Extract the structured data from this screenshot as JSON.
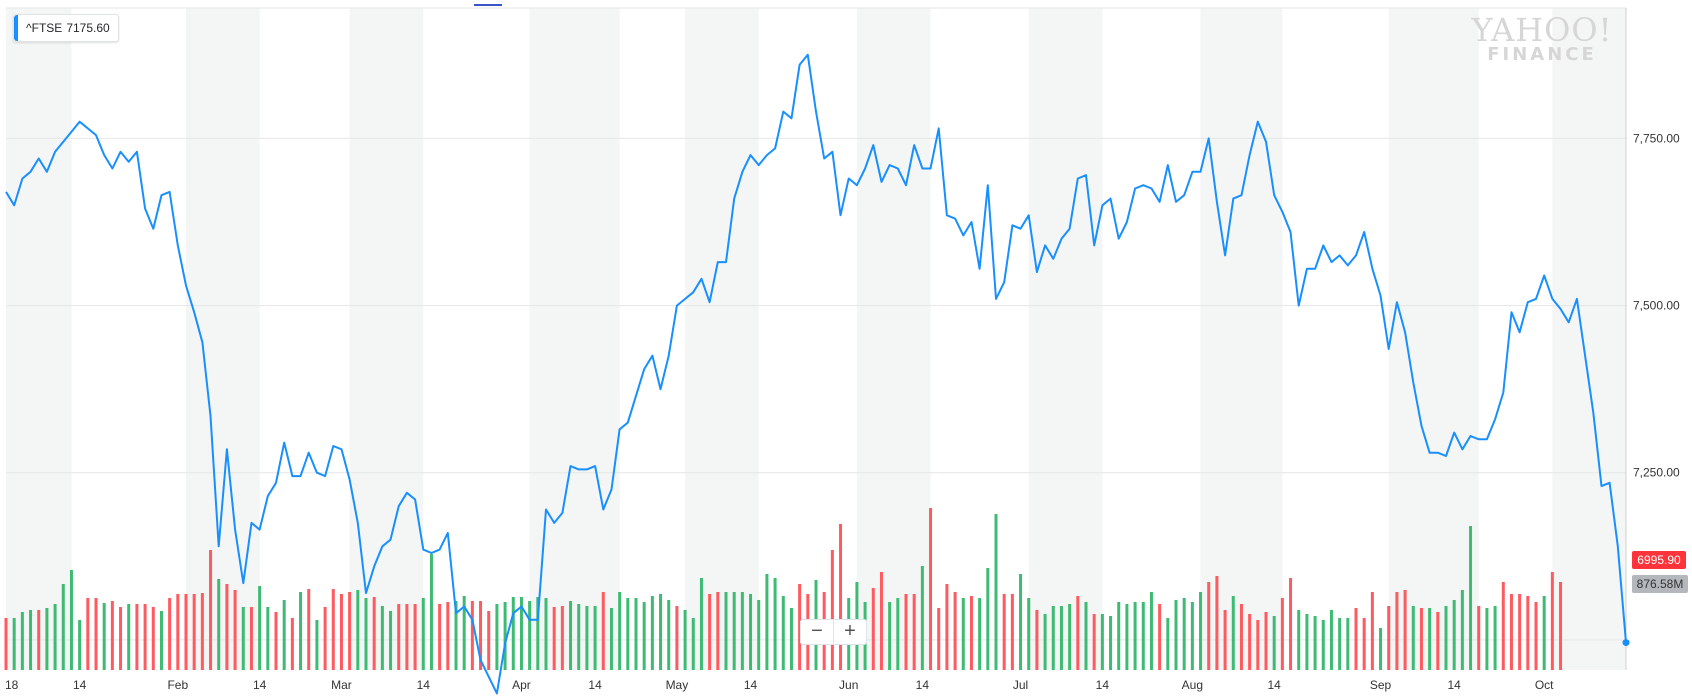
{
  "ticker": {
    "symbol": "^FTSE",
    "value": "7175.60"
  },
  "watermark": {
    "line1": "YAHOO!",
    "line2": "FINANCE"
  },
  "price_tag": "6995.90",
  "volume_tag": "876.58M",
  "zoom": {
    "minus": "−",
    "plus": "+"
  },
  "colors": {
    "line": "#188fff",
    "up": "#3dbb73",
    "down": "#ff5a5f",
    "band": "#f4f5f5"
  },
  "chart_data": {
    "type": "line",
    "xlabel": "",
    "ylabel": "",
    "ylim": [
      6955,
      7945
    ],
    "y_ticks": [
      {
        "value": 7750,
        "label": "7,750.00"
      },
      {
        "value": 7500,
        "label": "7,500.00"
      },
      {
        "value": 7250,
        "label": "7,250.00"
      }
    ],
    "x_ticks": [
      {
        "index": 0,
        "label": "18"
      },
      {
        "index": 9,
        "label": "14"
      },
      {
        "index": 21,
        "label": "Feb"
      },
      {
        "index": 31,
        "label": "14"
      },
      {
        "index": 41,
        "label": "Mar"
      },
      {
        "index": 51,
        "label": "14"
      },
      {
        "index": 63,
        "label": "Apr"
      },
      {
        "index": 72,
        "label": "14"
      },
      {
        "index": 82,
        "label": "May"
      },
      {
        "index": 91,
        "label": "14"
      },
      {
        "index": 103,
        "label": "Jun"
      },
      {
        "index": 112,
        "label": "14"
      },
      {
        "index": 124,
        "label": "Jul"
      },
      {
        "index": 134,
        "label": "14"
      },
      {
        "index": 145,
        "label": "Aug"
      },
      {
        "index": 155,
        "label": "14"
      },
      {
        "index": 168,
        "label": "Sep"
      },
      {
        "index": 177,
        "label": "14"
      },
      {
        "index": 188,
        "label": "Oct"
      }
    ],
    "bands": [
      [
        0,
        8
      ],
      [
        22,
        31
      ],
      [
        42,
        51
      ],
      [
        64,
        75
      ],
      [
        83,
        92
      ],
      [
        104,
        113
      ],
      [
        125,
        134
      ],
      [
        146,
        156
      ],
      [
        169,
        180
      ],
      [
        189,
        198
      ]
    ],
    "series": [
      {
        "values": [
          7670,
          7650,
          7690,
          7700,
          7720,
          7700,
          7730,
          7745,
          7760,
          7775,
          7765,
          7755,
          7725,
          7705,
          7730,
          7715,
          7730,
          7645,
          7615,
          7665,
          7670,
          7590,
          7530,
          7490,
          7445,
          7335,
          7140,
          7285,
          7165,
          7085,
          7175,
          7165,
          7215,
          7235,
          7295,
          7245,
          7245,
          7280,
          7250,
          7245,
          7290,
          7285,
          7240,
          7175,
          7070,
          7110,
          7140,
          7150,
          7200,
          7220,
          7210,
          7135,
          7130,
          7135,
          7160,
          7040,
          7050,
          7030,
          6970,
          6945,
          6920,
          6995,
          7040,
          7050,
          7030,
          7030,
          7195,
          7175,
          7190,
          7260,
          7255,
          7255,
          7260,
          7195,
          7225,
          7315,
          7325,
          7365,
          7405,
          7425,
          7375,
          7425,
          7500,
          7510,
          7520,
          7540,
          7505,
          7565,
          7565,
          7660,
          7700,
          7725,
          7710,
          7725,
          7735,
          7790,
          7780,
          7860,
          7875,
          7790,
          7720,
          7730,
          7635,
          7690,
          7680,
          7705,
          7740,
          7685,
          7710,
          7705,
          7680,
          7740,
          7705,
          7705,
          7765,
          7635,
          7630,
          7605,
          7625,
          7555,
          7680,
          7510,
          7535,
          7620,
          7615,
          7635,
          7550,
          7590,
          7570,
          7600,
          7615,
          7690,
          7695,
          7590,
          7650,
          7660,
          7600,
          7625,
          7675,
          7680,
          7675,
          7655,
          7710,
          7655,
          7665,
          7700,
          7700,
          7750,
          7655,
          7575,
          7660,
          7665,
          7725,
          7775,
          7745,
          7665,
          7640,
          7610,
          7500,
          7555,
          7555,
          7590,
          7565,
          7575,
          7560,
          7575,
          7610,
          7555,
          7515,
          7435,
          7505,
          7460,
          7385,
          7320,
          7280,
          7280,
          7275,
          7310,
          7285,
          7305,
          7300,
          7300,
          7330,
          7370,
          7490,
          7460,
          7505,
          7510,
          7545,
          7510,
          7495,
          7475,
          7510,
          7425,
          7340,
          7230,
          7235,
          7140,
          6996
        ]
      }
    ],
    "volume": [
      {
        "h": 52,
        "c": "down"
      },
      {
        "h": 52,
        "c": "up"
      },
      {
        "h": 58,
        "c": "up"
      },
      {
        "h": 60,
        "c": "up"
      },
      {
        "h": 60,
        "c": "down"
      },
      {
        "h": 62,
        "c": "up"
      },
      {
        "h": 66,
        "c": "up"
      },
      {
        "h": 86,
        "c": "up"
      },
      {
        "h": 100,
        "c": "up"
      },
      {
        "h": 50,
        "c": "up"
      },
      {
        "h": 72,
        "c": "down"
      },
      {
        "h": 72,
        "c": "down"
      },
      {
        "h": 67,
        "c": "up"
      },
      {
        "h": 69,
        "c": "down"
      },
      {
        "h": 63,
        "c": "down"
      },
      {
        "h": 66,
        "c": "up"
      },
      {
        "h": 66,
        "c": "down"
      },
      {
        "h": 66,
        "c": "down"
      },
      {
        "h": 63,
        "c": "down"
      },
      {
        "h": 59,
        "c": "up"
      },
      {
        "h": 72,
        "c": "down"
      },
      {
        "h": 76,
        "c": "down"
      },
      {
        "h": 76,
        "c": "down"
      },
      {
        "h": 76,
        "c": "down"
      },
      {
        "h": 77,
        "c": "down"
      },
      {
        "h": 120,
        "c": "down"
      },
      {
        "h": 91,
        "c": "up"
      },
      {
        "h": 86,
        "c": "down"
      },
      {
        "h": 80,
        "c": "down"
      },
      {
        "h": 63,
        "c": "up"
      },
      {
        "h": 63,
        "c": "down"
      },
      {
        "h": 84,
        "c": "up"
      },
      {
        "h": 63,
        "c": "up"
      },
      {
        "h": 58,
        "c": "down"
      },
      {
        "h": 70,
        "c": "up"
      },
      {
        "h": 52,
        "c": "down"
      },
      {
        "h": 78,
        "c": "up"
      },
      {
        "h": 81,
        "c": "down"
      },
      {
        "h": 50,
        "c": "up"
      },
      {
        "h": 63,
        "c": "down"
      },
      {
        "h": 81,
        "c": "down"
      },
      {
        "h": 76,
        "c": "down"
      },
      {
        "h": 78,
        "c": "down"
      },
      {
        "h": 80,
        "c": "up"
      },
      {
        "h": 72,
        "c": "up"
      },
      {
        "h": 73,
        "c": "down"
      },
      {
        "h": 64,
        "c": "up"
      },
      {
        "h": 59,
        "c": "up"
      },
      {
        "h": 66,
        "c": "down"
      },
      {
        "h": 66,
        "c": "down"
      },
      {
        "h": 66,
        "c": "down"
      },
      {
        "h": 72,
        "c": "up"
      },
      {
        "h": 116,
        "c": "up"
      },
      {
        "h": 66,
        "c": "down"
      },
      {
        "h": 68,
        "c": "down"
      },
      {
        "h": 69,
        "c": "up"
      },
      {
        "h": 74,
        "c": "up"
      },
      {
        "h": 69,
        "c": "down"
      },
      {
        "h": 69,
        "c": "down"
      },
      {
        "h": 59,
        "c": "down"
      },
      {
        "h": 66,
        "c": "up"
      },
      {
        "h": 68,
        "c": "up"
      },
      {
        "h": 73,
        "c": "up"
      },
      {
        "h": 73,
        "c": "up"
      },
      {
        "h": 69,
        "c": "up"
      },
      {
        "h": 73,
        "c": "up"
      },
      {
        "h": 72,
        "c": "up"
      },
      {
        "h": 63,
        "c": "down"
      },
      {
        "h": 64,
        "c": "down"
      },
      {
        "h": 69,
        "c": "up"
      },
      {
        "h": 66,
        "c": "up"
      },
      {
        "h": 64,
        "c": "up"
      },
      {
        "h": 64,
        "c": "up"
      },
      {
        "h": 78,
        "c": "down"
      },
      {
        "h": 62,
        "c": "up"
      },
      {
        "h": 78,
        "c": "up"
      },
      {
        "h": 72,
        "c": "up"
      },
      {
        "h": 72,
        "c": "up"
      },
      {
        "h": 68,
        "c": "up"
      },
      {
        "h": 74,
        "c": "up"
      },
      {
        "h": 76,
        "c": "up"
      },
      {
        "h": 70,
        "c": "up"
      },
      {
        "h": 64,
        "c": "down"
      },
      {
        "h": 60,
        "c": "up"
      },
      {
        "h": 52,
        "c": "up"
      },
      {
        "h": 92,
        "c": "up"
      },
      {
        "h": 76,
        "c": "down"
      },
      {
        "h": 78,
        "c": "down"
      },
      {
        "h": 78,
        "c": "up"
      },
      {
        "h": 78,
        "c": "up"
      },
      {
        "h": 78,
        "c": "up"
      },
      {
        "h": 76,
        "c": "up"
      },
      {
        "h": 70,
        "c": "up"
      },
      {
        "h": 96,
        "c": "up"
      },
      {
        "h": 92,
        "c": "up"
      },
      {
        "h": 74,
        "c": "up"
      },
      {
        "h": 62,
        "c": "up"
      },
      {
        "h": 86,
        "c": "down"
      },
      {
        "h": 76,
        "c": "down"
      },
      {
        "h": 90,
        "c": "up"
      },
      {
        "h": 78,
        "c": "down"
      },
      {
        "h": 120,
        "c": "down"
      },
      {
        "h": 146,
        "c": "down"
      },
      {
        "h": 72,
        "c": "up"
      },
      {
        "h": 88,
        "c": "up"
      },
      {
        "h": 68,
        "c": "up"
      },
      {
        "h": 82,
        "c": "down"
      },
      {
        "h": 98,
        "c": "down"
      },
      {
        "h": 68,
        "c": "up"
      },
      {
        "h": 72,
        "c": "up"
      },
      {
        "h": 76,
        "c": "down"
      },
      {
        "h": 76,
        "c": "down"
      },
      {
        "h": 104,
        "c": "up"
      },
      {
        "h": 162,
        "c": "down"
      },
      {
        "h": 62,
        "c": "down"
      },
      {
        "h": 86,
        "c": "down"
      },
      {
        "h": 78,
        "c": "down"
      },
      {
        "h": 72,
        "c": "up"
      },
      {
        "h": 74,
        "c": "down"
      },
      {
        "h": 72,
        "c": "up"
      },
      {
        "h": 102,
        "c": "up"
      },
      {
        "h": 156,
        "c": "up"
      },
      {
        "h": 76,
        "c": "down"
      },
      {
        "h": 76,
        "c": "down"
      },
      {
        "h": 96,
        "c": "up"
      },
      {
        "h": 72,
        "c": "up"
      },
      {
        "h": 60,
        "c": "down"
      },
      {
        "h": 56,
        "c": "up"
      },
      {
        "h": 64,
        "c": "up"
      },
      {
        "h": 64,
        "c": "up"
      },
      {
        "h": 66,
        "c": "up"
      },
      {
        "h": 74,
        "c": "down"
      },
      {
        "h": 68,
        "c": "up"
      },
      {
        "h": 56,
        "c": "down"
      },
      {
        "h": 56,
        "c": "up"
      },
      {
        "h": 54,
        "c": "up"
      },
      {
        "h": 68,
        "c": "up"
      },
      {
        "h": 66,
        "c": "up"
      },
      {
        "h": 68,
        "c": "up"
      },
      {
        "h": 68,
        "c": "up"
      },
      {
        "h": 78,
        "c": "up"
      },
      {
        "h": 66,
        "c": "down"
      },
      {
        "h": 52,
        "c": "up"
      },
      {
        "h": 70,
        "c": "up"
      },
      {
        "h": 72,
        "c": "up"
      },
      {
        "h": 68,
        "c": "up"
      },
      {
        "h": 78,
        "c": "up"
      },
      {
        "h": 88,
        "c": "down"
      },
      {
        "h": 94,
        "c": "down"
      },
      {
        "h": 60,
        "c": "down"
      },
      {
        "h": 74,
        "c": "up"
      },
      {
        "h": 66,
        "c": "down"
      },
      {
        "h": 56,
        "c": "down"
      },
      {
        "h": 50,
        "c": "down"
      },
      {
        "h": 58,
        "c": "down"
      },
      {
        "h": 54,
        "c": "up"
      },
      {
        "h": 72,
        "c": "down"
      },
      {
        "h": 92,
        "c": "down"
      },
      {
        "h": 60,
        "c": "up"
      },
      {
        "h": 56,
        "c": "up"
      },
      {
        "h": 54,
        "c": "up"
      },
      {
        "h": 50,
        "c": "up"
      },
      {
        "h": 60,
        "c": "up"
      },
      {
        "h": 52,
        "c": "up"
      },
      {
        "h": 52,
        "c": "up"
      },
      {
        "h": 62,
        "c": "down"
      },
      {
        "h": 52,
        "c": "down"
      },
      {
        "h": 78,
        "c": "down"
      },
      {
        "h": 42,
        "c": "up"
      },
      {
        "h": 64,
        "c": "down"
      },
      {
        "h": 78,
        "c": "down"
      },
      {
        "h": 80,
        "c": "down"
      },
      {
        "h": 64,
        "c": "up"
      },
      {
        "h": 62,
        "c": "down"
      },
      {
        "h": 62,
        "c": "up"
      },
      {
        "h": 58,
        "c": "down"
      },
      {
        "h": 64,
        "c": "up"
      },
      {
        "h": 70,
        "c": "up"
      },
      {
        "h": 80,
        "c": "up"
      },
      {
        "h": 144,
        "c": "up"
      },
      {
        "h": 64,
        "c": "down"
      },
      {
        "h": 62,
        "c": "up"
      },
      {
        "h": 64,
        "c": "up"
      },
      {
        "h": 88,
        "c": "down"
      },
      {
        "h": 76,
        "c": "down"
      },
      {
        "h": 76,
        "c": "down"
      },
      {
        "h": 74,
        "c": "down"
      },
      {
        "h": 68,
        "c": "down"
      },
      {
        "h": 74,
        "c": "up"
      },
      {
        "h": 98,
        "c": "down"
      },
      {
        "h": 88,
        "c": "down"
      }
    ]
  }
}
